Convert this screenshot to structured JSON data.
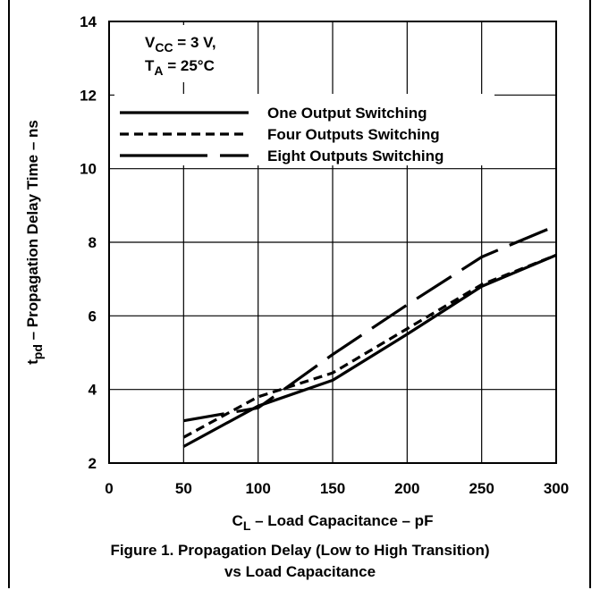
{
  "chart_data": {
    "type": "line",
    "xlabel_main": "C",
    "xlabel_sub": "L",
    "xlabel_rest": " – Load Capacitance – pF",
    "ylabel_main": "t",
    "ylabel_sub": "pd",
    "ylabel_rest": " – Propagation Delay Time – ns",
    "xlim": [
      0,
      300
    ],
    "ylim": [
      2,
      14
    ],
    "xticks": [
      0,
      50,
      100,
      150,
      200,
      250,
      300
    ],
    "yticks": [
      2,
      4,
      6,
      8,
      10,
      12,
      14
    ],
    "grid": true,
    "legend_position": "top-right",
    "series": [
      {
        "name": "One Output Switching",
        "style": "solid",
        "x": [
          50,
          100,
          150,
          200,
          250,
          300
        ],
        "y": [
          2.45,
          3.55,
          4.25,
          5.5,
          6.8,
          7.65
        ]
      },
      {
        "name": "Four Outputs Switching",
        "style": "dashed",
        "x": [
          50,
          100,
          150,
          200,
          250,
          300
        ],
        "y": [
          2.7,
          3.8,
          4.45,
          5.65,
          6.85,
          7.65
        ]
      },
      {
        "name": "Eight Outputs Switching",
        "style": "longdash",
        "x": [
          50,
          100,
          150,
          200,
          250,
          300
        ],
        "y": [
          3.15,
          3.5,
          4.95,
          6.3,
          7.6,
          8.45
        ]
      }
    ],
    "annotation": {
      "line1_main": "V",
      "line1_sub": "CC",
      "line1_rest": " = 3 V,",
      "line2_main": "T",
      "line2_sub": "A",
      "line2_rest": " = 25°C"
    }
  },
  "caption": {
    "line1": "Figure 1. Propagation Delay (Low to High Transition)",
    "line2": "vs Load Capacitance"
  }
}
